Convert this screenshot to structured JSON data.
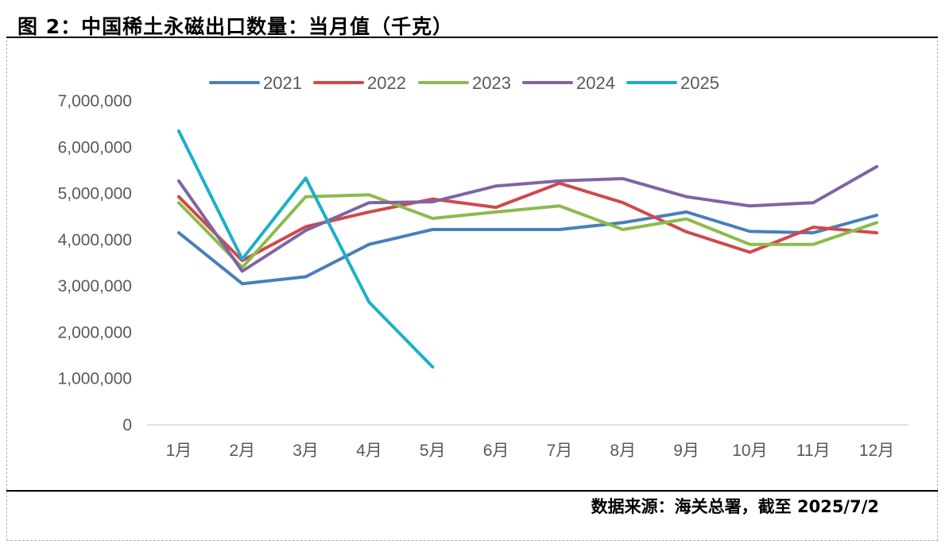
{
  "header": {
    "title": "图 2：中国稀土永磁出口数量：当月值（千克）"
  },
  "footer": {
    "source": "数据来源：海关总署，截至 2025/7/2"
  },
  "chart_data": {
    "type": "line",
    "title": "图 2：中国稀土永磁出口数量：当月值（千克）",
    "xlabel": "",
    "ylabel": "",
    "categories": [
      "1月",
      "2月",
      "3月",
      "4月",
      "5月",
      "6月",
      "7月",
      "8月",
      "9月",
      "10月",
      "11月",
      "12月"
    ],
    "ylim": [
      0,
      7000000
    ],
    "yticks": [
      0,
      1000000,
      2000000,
      3000000,
      4000000,
      5000000,
      6000000,
      7000000
    ],
    "ytick_labels": [
      "0",
      "1,000,000",
      "2,000,000",
      "3,000,000",
      "4,000,000",
      "5,000,000",
      "6,000,000",
      "7,000,000"
    ],
    "grid": false,
    "legend_position": "top",
    "series": [
      {
        "name": "2021",
        "color": "#4a7ebb",
        "values": [
          4150000,
          3050000,
          3200000,
          3900000,
          4220000,
          4220000,
          4220000,
          4370000,
          4600000,
          4180000,
          4150000,
          4530000
        ]
      },
      {
        "name": "2022",
        "color": "#d0484b",
        "values": [
          4930000,
          3550000,
          4280000,
          4600000,
          4880000,
          4700000,
          5220000,
          4800000,
          4170000,
          3730000,
          4270000,
          4150000
        ]
      },
      {
        "name": "2023",
        "color": "#8cbb4b",
        "values": [
          4800000,
          3400000,
          4930000,
          4970000,
          4460000,
          4600000,
          4730000,
          4220000,
          4450000,
          3900000,
          3900000,
          4370000
        ]
      },
      {
        "name": "2024",
        "color": "#8064a2",
        "values": [
          5270000,
          3320000,
          4200000,
          4800000,
          4820000,
          5160000,
          5270000,
          5320000,
          4930000,
          4730000,
          4800000,
          5580000
        ]
      },
      {
        "name": "2025",
        "color": "#1bb0c8",
        "values": [
          6350000,
          3580000,
          5330000,
          2650000,
          1250000,
          null,
          null,
          null,
          null,
          null,
          null,
          null
        ]
      }
    ]
  }
}
